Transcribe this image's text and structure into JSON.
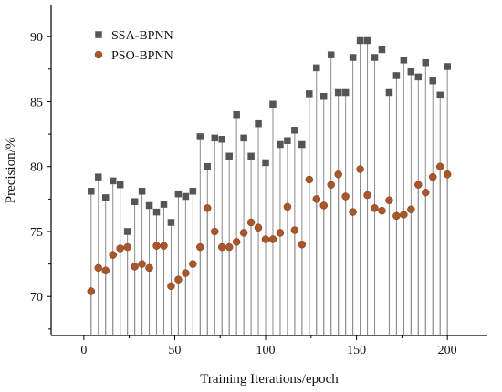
{
  "chart_data": {
    "type": "scatter",
    "xlabel": "Training Iterations/epoch",
    "ylabel": "Precision/%",
    "xlim": [
      -18,
      222
    ],
    "ylim": [
      67,
      92.4
    ],
    "xticks": [
      0,
      50,
      100,
      150,
      200
    ],
    "yticks": [
      70,
      75,
      80,
      85,
      90
    ],
    "grid": false,
    "legend_position": "top-left",
    "drop_lines": true,
    "drop_line_color": "#8c8c8c",
    "series": [
      {
        "name": "SSA-BPNN",
        "marker": "square",
        "color": "#555555",
        "x": [
          4,
          8,
          12,
          16,
          20,
          24,
          28,
          32,
          36,
          40,
          44,
          48,
          52,
          56,
          60,
          64,
          68,
          72,
          76,
          80,
          84,
          88,
          92,
          96,
          100,
          104,
          108,
          112,
          116,
          120,
          124,
          128,
          132,
          136,
          140,
          144,
          148,
          152,
          156,
          160,
          164,
          168,
          172,
          176,
          180,
          184,
          188,
          192,
          196,
          200
        ],
        "y": [
          78.1,
          79.2,
          77.6,
          78.9,
          78.6,
          75.0,
          77.3,
          78.1,
          77.0,
          76.5,
          77.1,
          75.7,
          77.9,
          77.7,
          78.1,
          82.3,
          80.0,
          82.2,
          82.1,
          80.8,
          84.0,
          82.2,
          80.8,
          83.3,
          80.3,
          84.8,
          81.7,
          82.0,
          82.8,
          81.7,
          85.6,
          87.6,
          85.4,
          88.6,
          85.7,
          85.7,
          88.4,
          89.7,
          89.7,
          88.4,
          89.0,
          85.7,
          87.0,
          88.2,
          87.3,
          86.9,
          88.0,
          86.6,
          85.5,
          87.7
        ]
      },
      {
        "name": "PSO-BPNN",
        "marker": "circle",
        "color": "#a8562a",
        "x": [
          4,
          8,
          12,
          16,
          20,
          24,
          28,
          32,
          36,
          40,
          44,
          48,
          52,
          56,
          60,
          64,
          68,
          72,
          76,
          80,
          84,
          88,
          92,
          96,
          100,
          104,
          108,
          112,
          116,
          120,
          124,
          128,
          132,
          136,
          140,
          144,
          148,
          152,
          156,
          160,
          164,
          168,
          172,
          176,
          180,
          184,
          188,
          192,
          196,
          200
        ],
        "y": [
          70.4,
          72.2,
          72.0,
          73.2,
          73.7,
          73.8,
          72.3,
          72.5,
          72.2,
          73.9,
          73.9,
          70.8,
          71.3,
          71.8,
          72.5,
          73.8,
          76.8,
          75.0,
          73.8,
          73.8,
          74.2,
          74.9,
          75.7,
          75.3,
          74.4,
          74.4,
          74.9,
          76.9,
          75.1,
          74.0,
          79.0,
          77.5,
          77.0,
          78.6,
          79.4,
          77.7,
          76.5,
          79.8,
          77.8,
          76.8,
          76.6,
          77.4,
          76.2,
          76.3,
          76.7,
          78.6,
          78.0,
          79.2,
          80.0,
          79.4
        ]
      }
    ]
  }
}
